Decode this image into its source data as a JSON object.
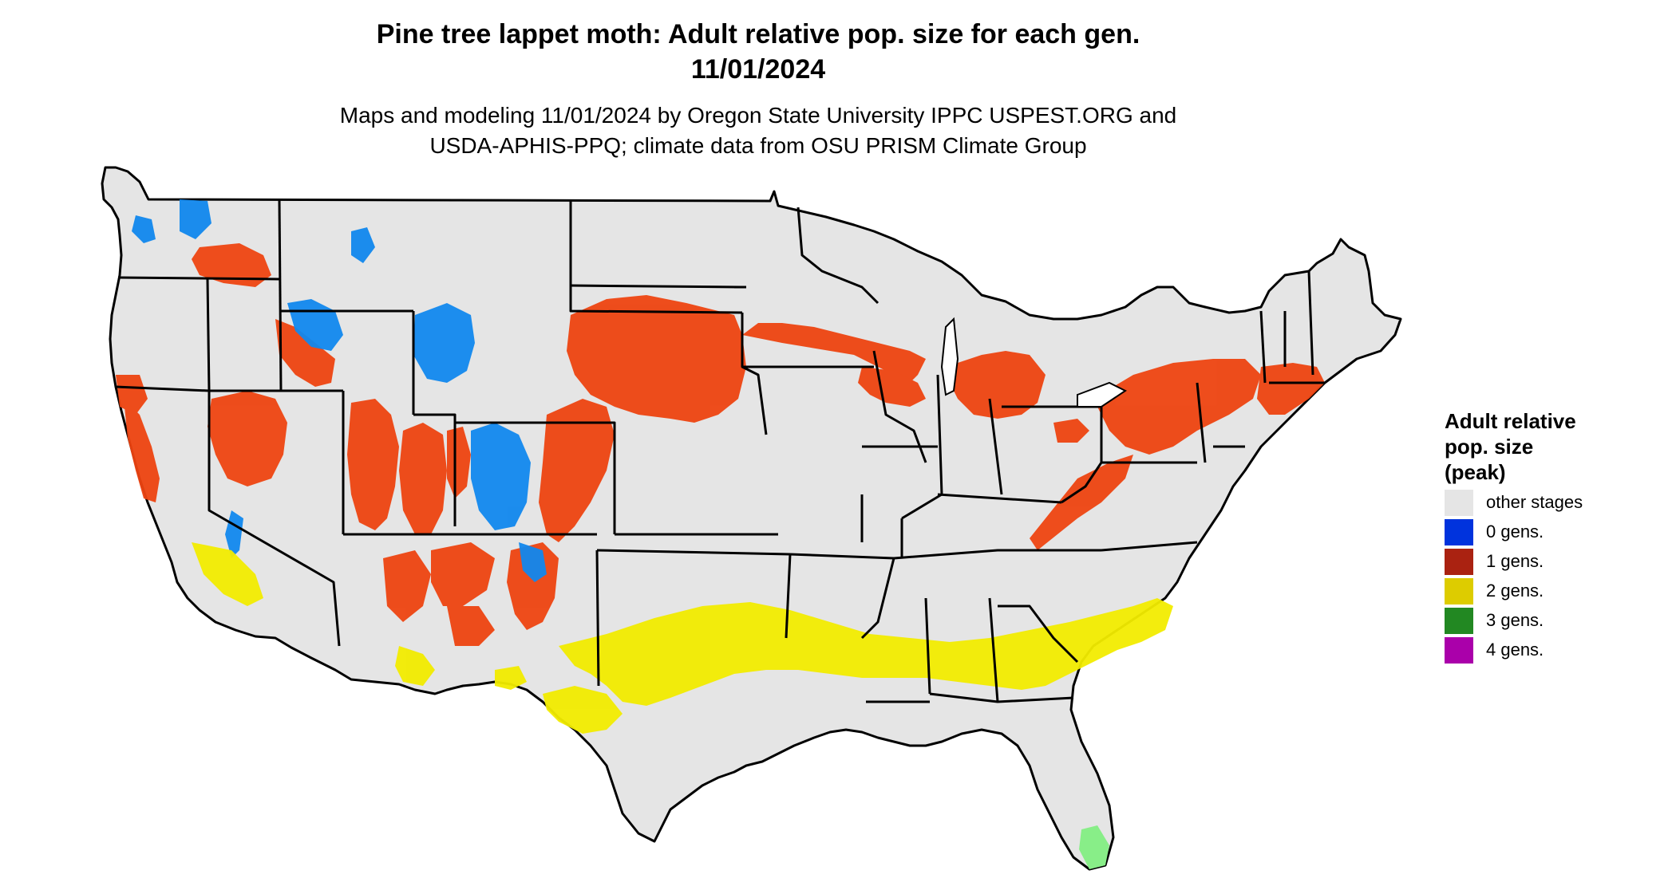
{
  "header": {
    "title_line1": "Pine tree lappet moth: Adult relative pop. size for each gen.",
    "title_line2": "11/01/2024",
    "subtitle_line1": "Maps and modeling 11/01/2024 by Oregon State University IPPC USPEST.ORG and",
    "subtitle_line2": "USDA-APHIS-PPQ; climate data from OSU PRISM Climate Group"
  },
  "legend": {
    "title_lines": [
      "Adult relative",
      "pop. size",
      "(peak)"
    ],
    "items": [
      {
        "label": "other stages",
        "color": "#e5e5e5"
      },
      {
        "label": "0 gens.",
        "color": "#0033dd"
      },
      {
        "label": "1 gens.",
        "color": "#aa2211"
      },
      {
        "label": "2 gens.",
        "color": "#ddcc00"
      },
      {
        "label": "3 gens.",
        "color": "#228822"
      },
      {
        "label": "4 gens.",
        "color": "#aa00aa"
      }
    ]
  },
  "map_colors": {
    "background": "#e5e5e5",
    "border": "#000000",
    "zero_gens_fill": "#1188ee",
    "one_gen_fill": "#ee4411",
    "two_gens_fill": "#f2ec00",
    "three_gens_fill": "#88ee88"
  }
}
